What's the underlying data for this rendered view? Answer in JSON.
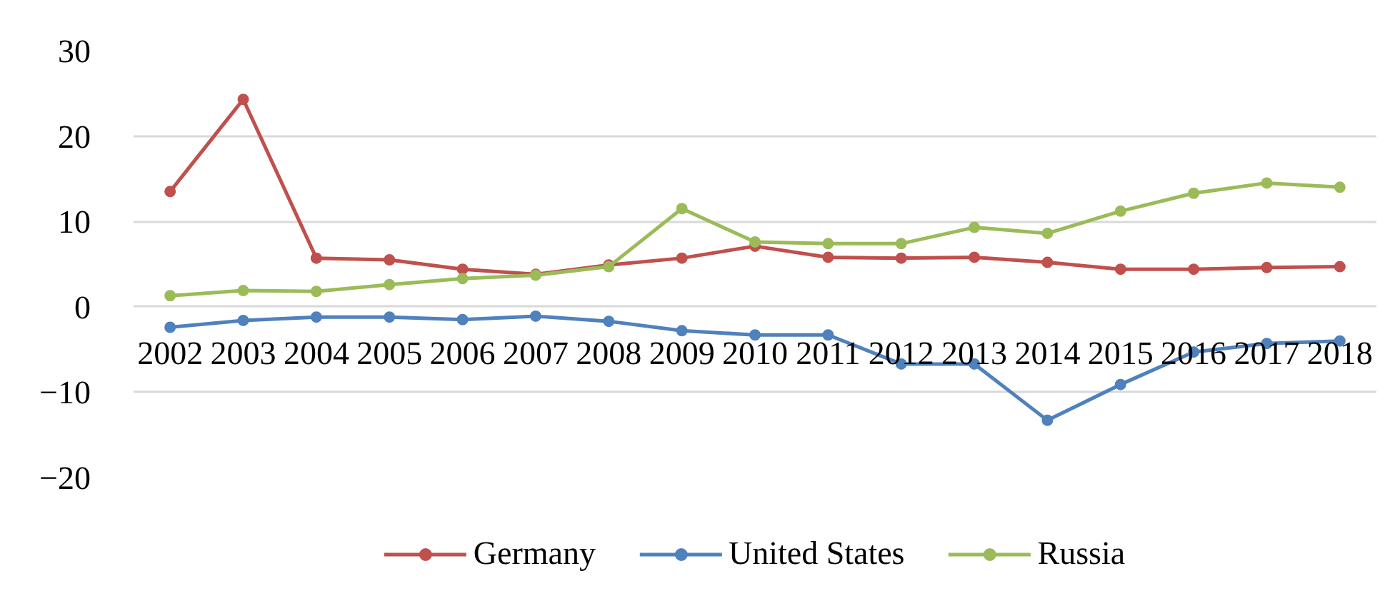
{
  "chart_data": {
    "type": "line",
    "categories": [
      "2002",
      "2003",
      "2004",
      "2005",
      "2006",
      "2007",
      "2008",
      "2009",
      "2010",
      "2011",
      "2012",
      "2013",
      "2014",
      "2015",
      "2016",
      "2017",
      "2018"
    ],
    "series": [
      {
        "name": "Germany",
        "color": "#c0504d",
        "values": [
          13.5,
          24.3,
          5.7,
          5.5,
          4.4,
          3.8,
          4.9,
          5.7,
          7.1,
          5.8,
          5.7,
          5.8,
          5.2,
          4.4,
          4.4,
          4.6,
          4.7
        ]
      },
      {
        "name": "United States",
        "color": "#4f81bd",
        "values": [
          -2.4,
          -1.6,
          -1.2,
          -1.2,
          -1.5,
          -1.1,
          -1.7,
          -2.8,
          -3.3,
          -3.3,
          -6.7,
          -6.7,
          -13.3,
          -9.1,
          -5.3,
          -4.3,
          -4.0
        ]
      },
      {
        "name": "Russia",
        "color": "#9bbb59",
        "values": [
          1.3,
          1.9,
          1.8,
          2.6,
          3.3,
          3.7,
          4.7,
          11.5,
          7.6,
          7.4,
          7.4,
          9.3,
          8.6,
          11.2,
          13.3,
          14.5,
          14.0
        ]
      }
    ],
    "ylim": [
      -20,
      30
    ],
    "yticks": [
      -20,
      -10,
      0,
      10,
      20,
      30
    ],
    "grid": "y",
    "legend": "bottom",
    "marker": "circle",
    "line_style": "solid"
  }
}
